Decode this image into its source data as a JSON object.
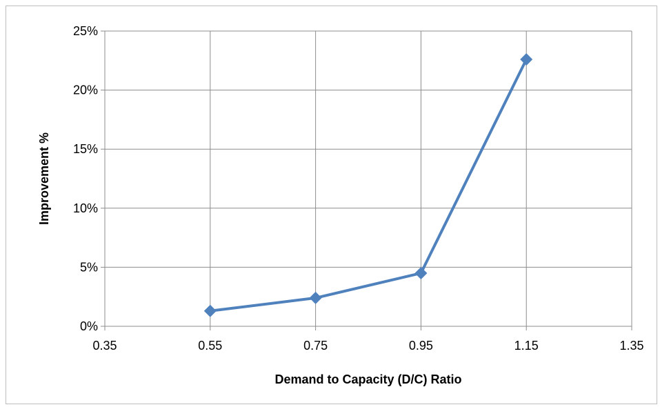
{
  "chart_data": {
    "type": "scatter",
    "title": "",
    "xlabel": "Demand to Capacity (D/C) Ratio",
    "ylabel": "Improvement %",
    "xlim": [
      0.35,
      1.35
    ],
    "ylim": [
      0,
      25
    ],
    "x_ticks": [
      "0.35",
      "0.55",
      "0.75",
      "0.95",
      "1.15",
      "1.35"
    ],
    "y_ticks": [
      "0%",
      "5%",
      "10%",
      "15%",
      "20%",
      "25%"
    ],
    "grid": true,
    "legend": "none",
    "series": [
      {
        "color": "#4f81bd",
        "marker": "diamond",
        "line": "straight",
        "x": [
          0.55,
          0.75,
          0.95,
          1.15
        ],
        "y": [
          1.3,
          2.4,
          4.5,
          22.6
        ]
      }
    ]
  }
}
